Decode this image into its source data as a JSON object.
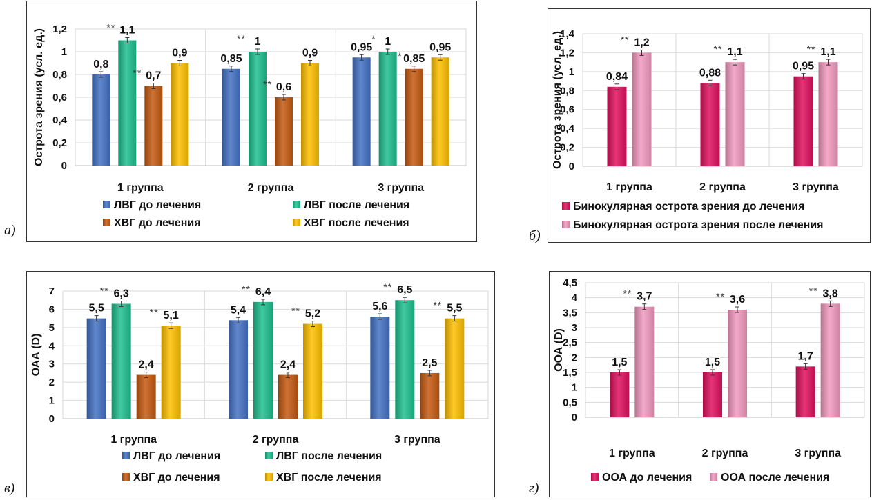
{
  "chart_data": [
    {
      "id": "a",
      "panel_label": "а)",
      "type": "bar",
      "ylabel": "Острота зрения  (усл. ед.)",
      "ylim": [
        0,
        1.2
      ],
      "yticks": [
        "0",
        "0,2",
        "0,4",
        "0,6",
        "0,8",
        "1",
        "1,2"
      ],
      "categories": [
        "1 группа",
        "2 группа",
        "3 группа"
      ],
      "series": [
        {
          "name": "ЛВГ до лечения",
          "color": "#4472C4",
          "values": [
            0.8,
            0.85,
            0.95
          ],
          "labels": [
            "0,8",
            "0,85",
            "0,95"
          ],
          "marks": [
            "",
            "",
            ""
          ]
        },
        {
          "name": "ЛВГ после лечения",
          "color": "#1FC08F",
          "values": [
            1.1,
            1.0,
            1.0
          ],
          "labels": [
            "1,1",
            "1",
            "1"
          ],
          "marks": [
            "**",
            "**",
            "*"
          ]
        },
        {
          "name": "ХВГ до лечения",
          "color": "#C55A11",
          "values": [
            0.7,
            0.6,
            0.85
          ],
          "labels": [
            "0,7",
            "0,6",
            "0,85"
          ],
          "marks": [
            "**",
            "**",
            "*"
          ]
        },
        {
          "name": "ХВГ после лечения",
          "color": "#FFC000",
          "values": [
            0.9,
            0.9,
            0.95
          ],
          "labels": [
            "0,9",
            "0,9",
            "0,95"
          ],
          "marks": [
            "",
            "",
            ""
          ]
        }
      ],
      "grid": true,
      "legend": "bottom"
    },
    {
      "id": "b",
      "panel_label": "б)",
      "type": "bar",
      "ylabel": "Острота зрения (усл. ед.)",
      "ylim": [
        0,
        1.4
      ],
      "yticks": [
        "0",
        "0,2",
        "0,4",
        "0,6",
        "0,8",
        "1",
        "1,2",
        "1,4"
      ],
      "categories": [
        "1 группа",
        "2 группа",
        "3 группа"
      ],
      "series": [
        {
          "name": "Бинокулярная острота зрения до лечения",
          "color": "#E0115F",
          "values": [
            0.84,
            0.88,
            0.95
          ],
          "labels": [
            "0,84",
            "0,88",
            "0,95"
          ],
          "marks": [
            "",
            "",
            ""
          ]
        },
        {
          "name": "Бинокулярная острота зрения после лечения",
          "color": "#F29AC0",
          "values": [
            1.2,
            1.1,
            1.1
          ],
          "labels": [
            "1,2",
            "1,1",
            "1,1"
          ],
          "marks": [
            "**",
            "**",
            "**"
          ]
        }
      ],
      "grid": true,
      "legend": "bottom"
    },
    {
      "id": "c",
      "panel_label": "в)",
      "type": "bar",
      "ylabel": "ОАА (D)",
      "ylim": [
        0,
        7
      ],
      "yticks": [
        "0",
        "1",
        "2",
        "3",
        "4",
        "5",
        "6",
        "7"
      ],
      "categories": [
        "1 группа",
        "2 группа",
        "3 группа"
      ],
      "series": [
        {
          "name": "ЛВГ до лечения",
          "color": "#4472C4",
          "values": [
            5.5,
            5.4,
            5.6
          ],
          "labels": [
            "5,5",
            "5,4",
            "5,6"
          ],
          "marks": [
            "",
            "",
            ""
          ]
        },
        {
          "name": "ЛВГ после лечения",
          "color": "#1FC08F",
          "values": [
            6.3,
            6.4,
            6.5
          ],
          "labels": [
            "6,3",
            "6,4",
            "6,5"
          ],
          "marks": [
            "**",
            "**",
            "**"
          ]
        },
        {
          "name": "ХВГ до лечения",
          "color": "#C55A11",
          "values": [
            2.4,
            2.4,
            2.5
          ],
          "labels": [
            "2,4",
            "2,4",
            "2,5"
          ],
          "marks": [
            "",
            "",
            ""
          ]
        },
        {
          "name": "ХВГ после лечения",
          "color": "#FFC000",
          "values": [
            5.1,
            5.2,
            5.5
          ],
          "labels": [
            "5,1",
            "5,2",
            "5,5"
          ],
          "marks": [
            "**",
            "**",
            "**"
          ]
        }
      ],
      "grid": true,
      "legend": "bottom"
    },
    {
      "id": "d",
      "panel_label": "г)",
      "type": "bar",
      "ylabel": "ООА (D)",
      "ylim": [
        0,
        4.5
      ],
      "yticks": [
        "0",
        "0,5",
        "1",
        "1,5",
        "2",
        "2,5",
        "3",
        "3,5",
        "4",
        "4,5"
      ],
      "categories": [
        "1 группа",
        "2 группа",
        "3 группа"
      ],
      "series": [
        {
          "name": "ООА до лечения",
          "color": "#E0115F",
          "values": [
            1.5,
            1.5,
            1.7
          ],
          "labels": [
            "1,5",
            "1,5",
            "1,7"
          ],
          "marks": [
            "",
            "",
            ""
          ]
        },
        {
          "name": "ООА после лечения",
          "color": "#F29AC0",
          "values": [
            3.7,
            3.6,
            3.8
          ],
          "labels": [
            "3,7",
            "3,6",
            "3,8"
          ],
          "marks": [
            "**",
            "**",
            "**"
          ]
        }
      ],
      "grid": true,
      "legend": "bottom"
    }
  ]
}
